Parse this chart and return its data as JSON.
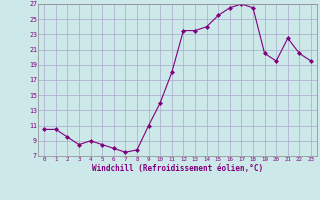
{
  "x": [
    0,
    1,
    2,
    3,
    4,
    5,
    6,
    7,
    8,
    9,
    10,
    11,
    12,
    13,
    14,
    15,
    16,
    17,
    18,
    19,
    20,
    21,
    22,
    23
  ],
  "y": [
    10.5,
    10.5,
    9.5,
    8.5,
    9.0,
    8.5,
    8.0,
    7.5,
    7.8,
    11.0,
    14.0,
    18.0,
    23.5,
    23.5,
    24.0,
    25.5,
    26.5,
    27.0,
    26.5,
    20.5,
    19.5,
    22.5,
    20.5,
    19.5
  ],
  "line_color": "#800080",
  "marker": "D",
  "marker_size": 2,
  "bg_color": "#cce8e8",
  "grid_color": "#aaaacc",
  "xlabel": "Windchill (Refroidissement éolien,°C)",
  "xlabel_color": "#800080",
  "tick_color": "#800080",
  "ylim": [
    7,
    27
  ],
  "xlim": [
    -0.5,
    23.5
  ],
  "yticks": [
    7,
    9,
    11,
    13,
    15,
    17,
    19,
    21,
    23,
    25,
    27
  ],
  "xticks": [
    0,
    1,
    2,
    3,
    4,
    5,
    6,
    7,
    8,
    9,
    10,
    11,
    12,
    13,
    14,
    15,
    16,
    17,
    18,
    19,
    20,
    21,
    22,
    23
  ]
}
